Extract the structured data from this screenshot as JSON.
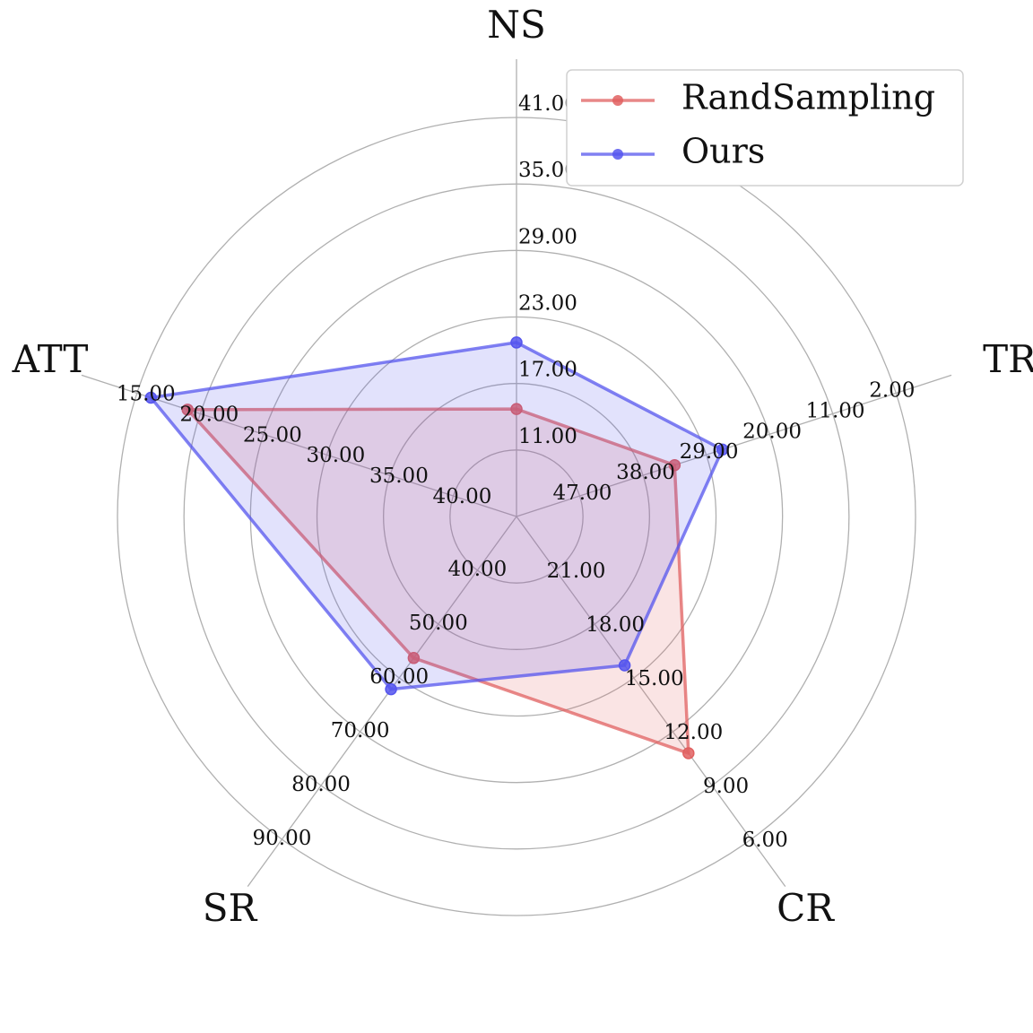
{
  "chart_data": {
    "type": "radar",
    "axes": [
      {
        "name": "NS",
        "ticks": [
          "11.00",
          "17.00",
          "23.00",
          "29.00",
          "35.00",
          "41.00"
        ],
        "range": [
          5,
          41
        ]
      },
      {
        "name": "TR",
        "ticks": [
          "47.00",
          "38.00",
          "29.00",
          "20.00",
          "11.00",
          "2.00"
        ],
        "range": [
          56,
          2
        ]
      },
      {
        "name": "CR",
        "ticks": [
          "21.00",
          "18.00",
          "15.00",
          "12.00",
          "9.00",
          "6.00"
        ],
        "range": [
          24,
          6
        ]
      },
      {
        "name": "SR",
        "ticks": [
          "40.00",
          "50.00",
          "60.00",
          "70.00",
          "80.00",
          "90.00"
        ],
        "range": [
          30,
          90
        ]
      },
      {
        "name": "ATT",
        "ticks": [
          "40.00",
          "35.00",
          "30.00",
          "25.00",
          "20.00",
          "15.00"
        ],
        "range": [
          45,
          15
        ]
      }
    ],
    "series": [
      {
        "name": "RandSampling",
        "color": "#e06060",
        "values": [
          14.7,
          33.5,
          10.8,
          56.3,
          19.0
        ]
      },
      {
        "name": "Ours",
        "color": "#5555ee",
        "values": [
          20.7,
          26.7,
          15.7,
          62.1,
          16.1
        ]
      }
    ],
    "grid": true,
    "legend": "top-right"
  }
}
